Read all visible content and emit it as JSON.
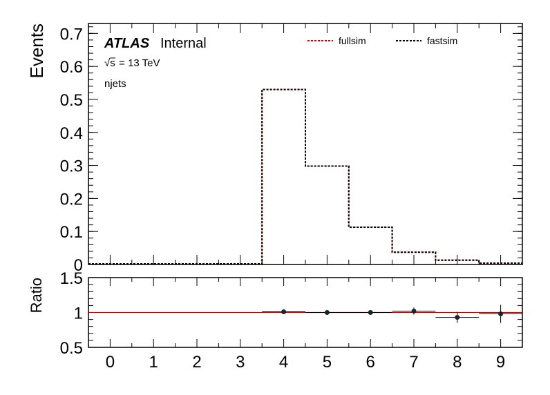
{
  "chart_data": [
    {
      "type": "line",
      "panel": "main",
      "xlim": [
        -0.5,
        9.5
      ],
      "ylim": [
        0,
        0.73
      ],
      "ylabel": "Events",
      "yticks": [
        "0",
        "0.1",
        "0.2",
        "0.3",
        "0.4",
        "0.5",
        "0.6",
        "0.7"
      ],
      "ytick_values": [
        0,
        0.1,
        0.2,
        0.3,
        0.4,
        0.5,
        0.6,
        0.7
      ],
      "bin_edges": [
        -0.5,
        0.5,
        1.5,
        2.5,
        3.5,
        4.5,
        5.5,
        6.5,
        7.5,
        8.5,
        9.5
      ],
      "series": [
        {
          "name": "fullsim",
          "color": "#cc0000",
          "style": "dashed-step",
          "values": [
            0.002,
            0.002,
            0.002,
            0.002,
            0.53,
            0.298,
            0.113,
            0.037,
            0.013,
            0.004
          ]
        },
        {
          "name": "fastsim",
          "color": "#000000",
          "style": "dashed-step",
          "values": [
            0.002,
            0.002,
            0.002,
            0.002,
            0.53,
            0.298,
            0.113,
            0.037,
            0.013,
            0.004
          ]
        }
      ],
      "legend_placement": "top-right",
      "annotations": {
        "atlas": "ATLAS",
        "internal": "Internal",
        "sqrt_symbol": "√s",
        "energy": " = 13 TeV",
        "variable": "njets"
      }
    },
    {
      "type": "scatter",
      "panel": "ratio",
      "xlim": [
        -0.5,
        9.5
      ],
      "ylim": [
        0.5,
        1.5
      ],
      "ylabel": "Ratio",
      "yticks": [
        "0.5",
        "1",
        "1.5"
      ],
      "ytick_values": [
        0.5,
        1,
        1.5
      ],
      "xticks": [
        "0",
        "1",
        "2",
        "3",
        "4",
        "5",
        "6",
        "7",
        "8",
        "9"
      ],
      "xtick_values": [
        0,
        1,
        2,
        3,
        4,
        5,
        6,
        7,
        8,
        9
      ],
      "reference_line": {
        "y": 1,
        "color": "#cc0000"
      },
      "points": [
        {
          "x": 4,
          "y": 1.01,
          "err": 0.01
        },
        {
          "x": 5,
          "y": 1.0,
          "err": 0.01
        },
        {
          "x": 6,
          "y": 1.0,
          "err": 0.015
        },
        {
          "x": 7,
          "y": 1.02,
          "err": 0.05
        },
        {
          "x": 8,
          "y": 0.93,
          "err": 0.08
        },
        {
          "x": 9,
          "y": 0.98,
          "err": 0.13
        }
      ]
    }
  ]
}
